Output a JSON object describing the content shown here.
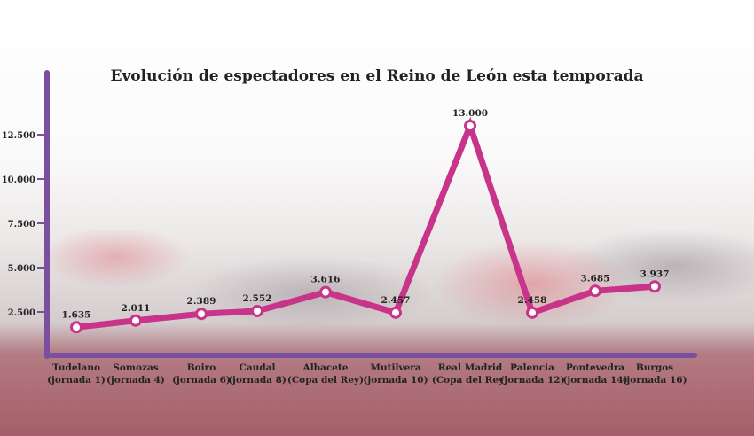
{
  "chart_data": {
    "type": "line",
    "title": "Evolución de espectadores en el Reino de León esta temporada",
    "xlabel": "",
    "ylabel": "",
    "ylim": [
      0,
      14000
    ],
    "yticks": [
      2500,
      5000,
      7500,
      10000,
      12500
    ],
    "ytick_labels": [
      "2.500",
      "5.000",
      "7.500",
      "10.000",
      "12.500"
    ],
    "categories": [
      [
        "Tudelano",
        "(jornada 1)"
      ],
      [
        "Somozas",
        "(jornada 4)"
      ],
      [
        "Boiro",
        "(jornada 6)"
      ],
      [
        "Caudal",
        "(jornada 8)"
      ],
      [
        "Albacete",
        "(Copa del Rey)"
      ],
      [
        "Mutilvera",
        "(jornada 10)"
      ],
      [
        "Real Madrid",
        "(Copa del Rey)"
      ],
      [
        "Palencia",
        "(jornada 12)"
      ],
      [
        "Pontevedra",
        "(jornada 14)"
      ],
      [
        "Burgos",
        "(jornada 16)"
      ]
    ],
    "values": [
      1635,
      2011,
      2389,
      2552,
      3616,
      2457,
      13000,
      2458,
      3685,
      3937
    ],
    "value_labels": [
      "1.635",
      "2.011",
      "2.389",
      "2.552",
      "3.616",
      "2.457",
      "13.000",
      "2.458",
      "3.685",
      "3.937"
    ],
    "grid": false,
    "colors": {
      "line": "#c8348a",
      "axis": "#7b4fa0",
      "marker_fill": "#ffffff"
    }
  }
}
